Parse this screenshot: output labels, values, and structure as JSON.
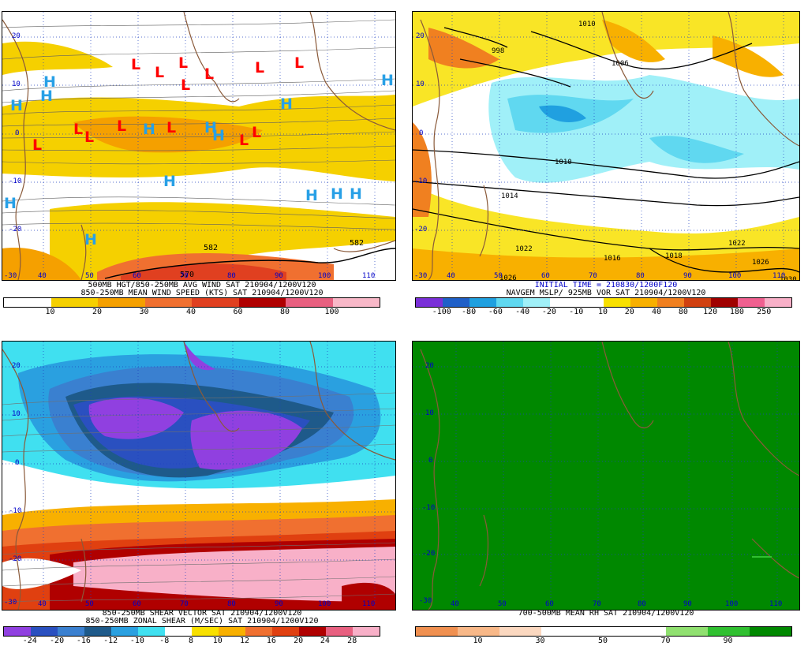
{
  "panels": [
    {
      "id": "wind",
      "caption_lines": [
        "500MB HGT/850-250MB AVG WIND SAT 210904/1200V120",
        "850-250MB MEAN WIND SPEED (KTS) SAT 210904/1200V120"
      ],
      "colorbar": {
        "colors": [
          "#ffffff",
          "#f5d000",
          "#f5a000",
          "#f07030",
          "#e04020",
          "#b00000",
          "#e86080",
          "#f8b8c8"
        ],
        "ticks": [
          "10",
          "20",
          "30",
          "40",
          "60",
          "80",
          "100"
        ]
      },
      "lat_labels": [
        "20",
        "10",
        "0",
        "-10",
        "-20",
        "-30"
      ],
      "lon_labels": [
        "40",
        "50",
        "60",
        "70",
        "80",
        "90",
        "100",
        "110"
      ],
      "contour_labels": [
        "582",
        "582",
        "570"
      ],
      "highs": [
        "H",
        "H",
        "H",
        "H",
        "H",
        "H",
        "H",
        "H",
        "H",
        "H",
        "H",
        "H",
        "H",
        "H"
      ],
      "lows": [
        "L",
        "L",
        "L",
        "L",
        "L",
        "L",
        "L",
        "L",
        "L",
        "L",
        "L",
        "L",
        "L",
        "L"
      ]
    },
    {
      "id": "mslp",
      "caption_lines": [
        "INITIAL TIME = 210830/1200F120",
        "NAVGEM MSLP/ 925MB VOR SAT 210904/1200V120"
      ],
      "colorbar": {
        "colors": [
          "#7a30d8",
          "#2060c8",
          "#20a0e0",
          "#60d8f0",
          "#a0f0f8",
          "#ffffff",
          "#f8e000",
          "#f8b000",
          "#f08020",
          "#d04010",
          "#a00000",
          "#f06090",
          "#f8b0c8"
        ],
        "ticks": [
          "-100",
          "-80",
          "-60",
          "-40",
          "-20",
          "-10",
          "10",
          "20",
          "40",
          "80",
          "120",
          "180",
          "250"
        ]
      },
      "lat_labels": [
        "20",
        "10",
        "0",
        "-10",
        "-20",
        "-30"
      ],
      "lon_labels": [
        "40",
        "50",
        "60",
        "70",
        "80",
        "90",
        "100",
        "110"
      ],
      "contour_labels": [
        "1010",
        "1016",
        "1006",
        "998",
        "1010",
        "1014",
        "1022",
        "1018",
        "1026",
        "1022",
        "1026",
        "1030"
      ]
    },
    {
      "id": "shear",
      "caption_lines": [
        "850-250MB SHEAR VECTOR SAT 210904/1200V120",
        "850-250MB ZONAL SHEAR (M/SEC) SAT 210904/1200V120"
      ],
      "colorbar": {
        "colors": [
          "#9040e0",
          "#2a50c0",
          "#3a80d0",
          "#1e5a8a",
          "#2aa0e0",
          "#40e0f0",
          "#ffffff",
          "#f8e000",
          "#f8b000",
          "#f07030",
          "#e04010",
          "#b00000",
          "#e86080",
          "#f8b0c8",
          "#f8d0e0"
        ],
        "ticks": [
          "-24",
          "-20",
          "-16",
          "-12",
          "-10",
          "-8",
          "8",
          "10",
          "12",
          "16",
          "20",
          "24",
          "28"
        ]
      },
      "lat_labels": [
        "20",
        "10",
        "0",
        "-10",
        "-20",
        "-30"
      ],
      "lon_labels": [
        "40",
        "50",
        "60",
        "70",
        "80",
        "90",
        "100",
        "110"
      ]
    },
    {
      "id": "rh",
      "caption_lines": [
        "700-500MB MEAN RH SAT 210904/1200V120"
      ],
      "colorbar": {
        "colors": [
          "#f09050",
          "#f8b888",
          "#fbd8c0",
          "#ffffff",
          "#ffffff",
          "#ffffff",
          "#90e070",
          "#30c030",
          "#008800"
        ],
        "ticks": [
          "10",
          "30",
          "50",
          "70",
          "90"
        ]
      },
      "lat_labels": [
        "20",
        "10",
        "0",
        "-10",
        "-20",
        "-30"
      ],
      "lon_labels": [
        "40",
        "50",
        "60",
        "70",
        "80",
        "90",
        "100",
        "110"
      ]
    }
  ]
}
